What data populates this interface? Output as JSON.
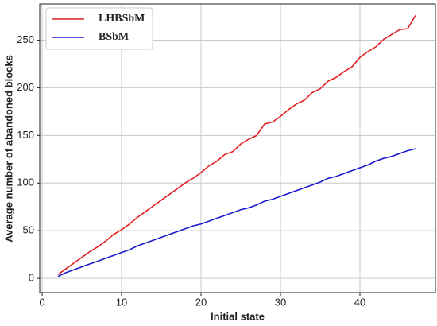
{
  "chart_data": {
    "type": "line",
    "xlabel": "Initial state",
    "ylabel": "Average number of abandoned blocks",
    "x": [
      2,
      3,
      4,
      5,
      6,
      7,
      8,
      9,
      10,
      11,
      12,
      13,
      14,
      15,
      16,
      17,
      18,
      19,
      20,
      21,
      22,
      23,
      24,
      25,
      26,
      27,
      28,
      29,
      30,
      31,
      32,
      33,
      34,
      35,
      36,
      37,
      38,
      39,
      40,
      41,
      42,
      43,
      44,
      45,
      46,
      47
    ],
    "series": [
      {
        "name": "LHBSbM",
        "color": "#e02020",
        "values": [
          4,
          10,
          16,
          22,
          28,
          33,
          39,
          46,
          51,
          57,
          64,
          70,
          76,
          82,
          88,
          94,
          100,
          105,
          111,
          118,
          123,
          130,
          133,
          141,
          146,
          150,
          162,
          164,
          170,
          177,
          183,
          187,
          195,
          199,
          207,
          211,
          217,
          222,
          232,
          238,
          243,
          251,
          256,
          261,
          262,
          276
        ]
      },
      {
        "name": "BSbM",
        "color": "#1a1ad0",
        "values": [
          2,
          6,
          9,
          12,
          15,
          18,
          21,
          24,
          27,
          30,
          34,
          37,
          40,
          43,
          46,
          49,
          52,
          55,
          57,
          60,
          63,
          66,
          69,
          72,
          74,
          77,
          81,
          83,
          86,
          89,
          92,
          95,
          98,
          101,
          105,
          107,
          110,
          113,
          116,
          119,
          123,
          126,
          128,
          131,
          134,
          136
        ]
      }
    ],
    "xlim": [
      -0.3,
      49.5
    ],
    "ylim": [
      -15,
      288
    ],
    "xticks": [
      0,
      10,
      20,
      30,
      40
    ],
    "yticks": [
      0,
      50,
      100,
      150,
      200,
      250
    ],
    "grid": true,
    "legend": "upper-left"
  }
}
